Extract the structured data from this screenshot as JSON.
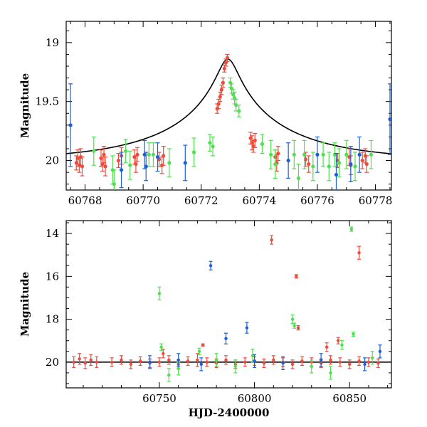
{
  "colors": {
    "ztf_r": "#f04a3a",
    "ztf_g": "#4fe04f",
    "atlas_o": "#1a5fd6",
    "model": "#000000"
  },
  "chart_data": [
    {
      "type": "scatter",
      "title": "",
      "xlabel": "",
      "ylabel": "Magnitude",
      "xlim": [
        60767.35,
        60778.55
      ],
      "ylim": [
        20.25,
        18.82
      ],
      "y_inverted": true,
      "xticks": [
        60768,
        60770,
        60772,
        60774,
        60776,
        60778
      ],
      "xtick_labels": [
        "60768",
        "60770",
        "60772",
        "60774",
        "60776",
        "60778"
      ],
      "yticks": [
        19,
        19.5,
        20
      ],
      "ytick_labels": [
        "19",
        "19.5",
        "20"
      ],
      "model": {
        "baseline": 20.0,
        "t0": 60772.92,
        "peak": 19.14,
        "u0": 0.077,
        "tE": 4.3
      },
      "series": [
        {
          "color": "red",
          "points": [
            [
              60767.7,
              20.02,
              0.06
            ],
            [
              60767.75,
              19.98,
              0.07
            ],
            [
              60767.8,
              20.04,
              0.06
            ],
            [
              60767.85,
              19.97,
              0.07
            ],
            [
              60767.9,
              20.05,
              0.08
            ],
            [
              60768.55,
              19.98,
              0.07
            ],
            [
              60768.6,
              20.03,
              0.06
            ],
            [
              60768.65,
              19.95,
              0.07
            ],
            [
              60768.7,
              20.05,
              0.08
            ],
            [
              60769.15,
              20.0,
              0.06
            ],
            [
              60769.25,
              19.96,
              0.07
            ],
            [
              60769.7,
              19.97,
              0.06
            ],
            [
              60769.75,
              20.03,
              0.07
            ],
            [
              60769.8,
              19.95,
              0.06
            ],
            [
              60770.55,
              19.99,
              0.06
            ],
            [
              60770.65,
              20.04,
              0.07
            ],
            [
              60770.7,
              19.96,
              0.08
            ],
            [
              60772.55,
              19.56,
              0.04
            ],
            [
              60772.6,
              19.52,
              0.04
            ],
            [
              60772.65,
              19.46,
              0.04
            ],
            [
              60772.7,
              19.4,
              0.04
            ],
            [
              60772.75,
              19.34,
              0.04
            ],
            [
              60772.8,
              19.22,
              0.03
            ],
            [
              60772.85,
              19.17,
              0.03
            ],
            [
              60772.9,
              19.13,
              0.03
            ],
            [
              60773.7,
              19.81,
              0.05
            ],
            [
              60773.75,
              19.85,
              0.06
            ],
            [
              60773.8,
              19.88,
              0.05
            ],
            [
              60773.85,
              19.83,
              0.06
            ],
            [
              60774.55,
              19.97,
              0.06
            ],
            [
              60774.6,
              20.02,
              0.07
            ],
            [
              60774.65,
              19.94,
              0.06
            ],
            [
              60775.6,
              19.99,
              0.06
            ],
            [
              60775.7,
              20.03,
              0.07
            ],
            [
              60776.7,
              20.0,
              0.06
            ],
            [
              60777.1,
              19.97,
              0.07
            ],
            [
              60777.15,
              20.04,
              0.08
            ],
            [
              60777.55,
              20.0,
              0.07
            ],
            [
              60777.65,
              19.96,
              0.06
            ],
            [
              60777.7,
              20.03,
              0.07
            ]
          ]
        },
        {
          "color": "green",
          "points": [
            [
              60768.3,
              19.92,
              0.12
            ],
            [
              60768.95,
              20.08,
              0.12
            ],
            [
              60769.0,
              20.2,
              0.12
            ],
            [
              60769.4,
              19.92,
              0.1
            ],
            [
              60769.55,
              20.04,
              0.12
            ],
            [
              60770.2,
              19.95,
              0.1
            ],
            [
              60770.35,
              19.95,
              0.1
            ],
            [
              60770.9,
              20.02,
              0.12
            ],
            [
              60771.75,
              19.93,
              0.12
            ],
            [
              60772.3,
              19.85,
              0.07
            ],
            [
              60772.4,
              19.88,
              0.08
            ],
            [
              60773.0,
              19.34,
              0.04
            ],
            [
              60773.05,
              19.39,
              0.04
            ],
            [
              60773.1,
              19.44,
              0.04
            ],
            [
              60773.15,
              19.47,
              0.05
            ],
            [
              60773.2,
              19.53,
              0.05
            ],
            [
              60773.3,
              19.58,
              0.05
            ],
            [
              60774.1,
              19.86,
              0.08
            ],
            [
              60774.4,
              19.95,
              0.12
            ],
            [
              60774.55,
              20.03,
              0.12
            ],
            [
              60775.2,
              19.95,
              0.12
            ],
            [
              60775.35,
              20.15,
              0.12
            ],
            [
              60775.55,
              19.95,
              0.12
            ],
            [
              60775.85,
              20.05,
              0.12
            ],
            [
              60776.2,
              19.95,
              0.1
            ],
            [
              60776.4,
              20.05,
              0.12
            ],
            [
              60776.6,
              19.95,
              0.1
            ],
            [
              60776.75,
              20.02,
              0.12
            ],
            [
              60777.0,
              19.95,
              0.12
            ],
            [
              60777.3,
              20.05,
              0.12
            ],
            [
              60777.85,
              19.95,
              0.12
            ]
          ]
        },
        {
          "color": "blue",
          "points": [
            [
              60767.5,
              19.7,
              0.35
            ],
            [
              60769.25,
              20.08,
              0.15
            ],
            [
              60770.05,
              19.95,
              0.12
            ],
            [
              60770.1,
              20.05,
              0.12
            ],
            [
              60770.5,
              19.97,
              0.12
            ],
            [
              60771.45,
              20.02,
              0.15
            ],
            [
              60775.0,
              20.0,
              0.15
            ],
            [
              60776.0,
              19.95,
              0.15
            ],
            [
              60776.65,
              20.12,
              0.18
            ],
            [
              60777.15,
              20.03,
              0.15
            ],
            [
              60777.45,
              19.95,
              0.15
            ],
            [
              60778.5,
              19.65,
              0.3
            ]
          ]
        }
      ]
    },
    {
      "type": "scatter",
      "title": "",
      "xlabel": "HJD-2400000",
      "ylabel": "Magnitude",
      "xlim": [
        60701,
        60872
      ],
      "ylim": [
        21.2,
        13.4
      ],
      "y_inverted": true,
      "xticks": [
        60750,
        60800,
        60850
      ],
      "xtick_labels": [
        "60750",
        "60800",
        "60850"
      ],
      "yticks": [
        14,
        16,
        18,
        20
      ],
      "ytick_labels": [
        "14",
        "16",
        "18",
        "20"
      ],
      "series": [
        {
          "color": "red",
          "points": [
            [
              60705,
              20.0,
              0.25
            ],
            [
              60708,
              19.85,
              0.25
            ],
            [
              60711,
              20.05,
              0.25
            ],
            [
              60714,
              19.9,
              0.25
            ],
            [
              60717,
              20.0,
              0.25
            ],
            [
              60725,
              20.0,
              0.2
            ],
            [
              60730,
              19.9,
              0.2
            ],
            [
              60735,
              20.1,
              0.2
            ],
            [
              60740,
              19.95,
              0.2
            ],
            [
              60745,
              20.05,
              0.2
            ],
            [
              60750,
              20.0,
              0.2
            ],
            [
              60755,
              19.9,
              0.2
            ],
            [
              60760,
              20.1,
              0.2
            ],
            [
              60765,
              19.95,
              0.2
            ],
            [
              60770,
              19.9,
              0.3
            ],
            [
              60775,
              20.0,
              0.2
            ],
            [
              60780,
              20.05,
              0.2
            ],
            [
              60785,
              19.9,
              0.2
            ],
            [
              60790,
              20.1,
              0.2
            ],
            [
              60795,
              20.0,
              0.2
            ],
            [
              60800,
              19.95,
              0.2
            ],
            [
              60805,
              20.05,
              0.2
            ],
            [
              60810,
              19.9,
              0.2
            ],
            [
              60815,
              20.0,
              0.2
            ],
            [
              60820,
              20.1,
              0.2
            ],
            [
              60825,
              19.95,
              0.2
            ],
            [
              60830,
              20.0,
              0.2
            ],
            [
              60835,
              20.05,
              0.2
            ],
            [
              60840,
              19.9,
              0.2
            ],
            [
              60845,
              20.0,
              0.2
            ],
            [
              60850,
              20.1,
              0.2
            ],
            [
              60855,
              19.95,
              0.2
            ],
            [
              60860,
              20.0,
              0.2
            ],
            [
              60865,
              20.05,
              0.2
            ],
            [
              60772.9,
              19.2,
              0.05
            ],
            [
              60809,
              14.3,
              0.2
            ],
            [
              60822,
              16.0,
              0.08
            ],
            [
              60823,
              18.4,
              0.1
            ],
            [
              60844,
              19.0,
              0.15
            ],
            [
              60855,
              14.9,
              0.3
            ],
            [
              60838,
              19.3,
              0.2
            ],
            [
              60752,
              19.6,
              0.2
            ]
          ]
        },
        {
          "color": "green",
          "points": [
            [
              60750,
              16.8,
              0.3
            ],
            [
              60751,
              19.3,
              0.15
            ],
            [
              60771,
              19.5,
              0.15
            ],
            [
              60780,
              19.9,
              0.3
            ],
            [
              60799,
              19.7,
              0.3
            ],
            [
              60820,
              18.0,
              0.2
            ],
            [
              60821,
              18.3,
              0.12
            ],
            [
              60846,
              19.2,
              0.2
            ],
            [
              60851,
              13.8,
              0.1
            ],
            [
              60852,
              18.7,
              0.1
            ],
            [
              60760,
              20.3,
              0.3
            ],
            [
              60790,
              20.2,
              0.3
            ],
            [
              60830,
              20.2,
              0.3
            ],
            [
              60862,
              19.8,
              0.3
            ],
            [
              60755,
              20.6,
              0.3
            ],
            [
              60840,
              20.5,
              0.3
            ]
          ]
        },
        {
          "color": "blue",
          "points": [
            [
              60777,
              15.5,
              0.2
            ],
            [
              60785,
              18.9,
              0.25
            ],
            [
              60796,
              18.4,
              0.25
            ],
            [
              60760,
              19.9,
              0.3
            ],
            [
              60772,
              20.1,
              0.3
            ],
            [
              60800,
              19.95,
              0.3
            ],
            [
              60815,
              20.05,
              0.3
            ],
            [
              60835,
              19.9,
              0.3
            ],
            [
              60858,
              20.1,
              0.3
            ],
            [
              60866,
              19.5,
              0.3
            ],
            [
              60745,
              20.0,
              0.3
            ]
          ]
        }
      ]
    }
  ]
}
